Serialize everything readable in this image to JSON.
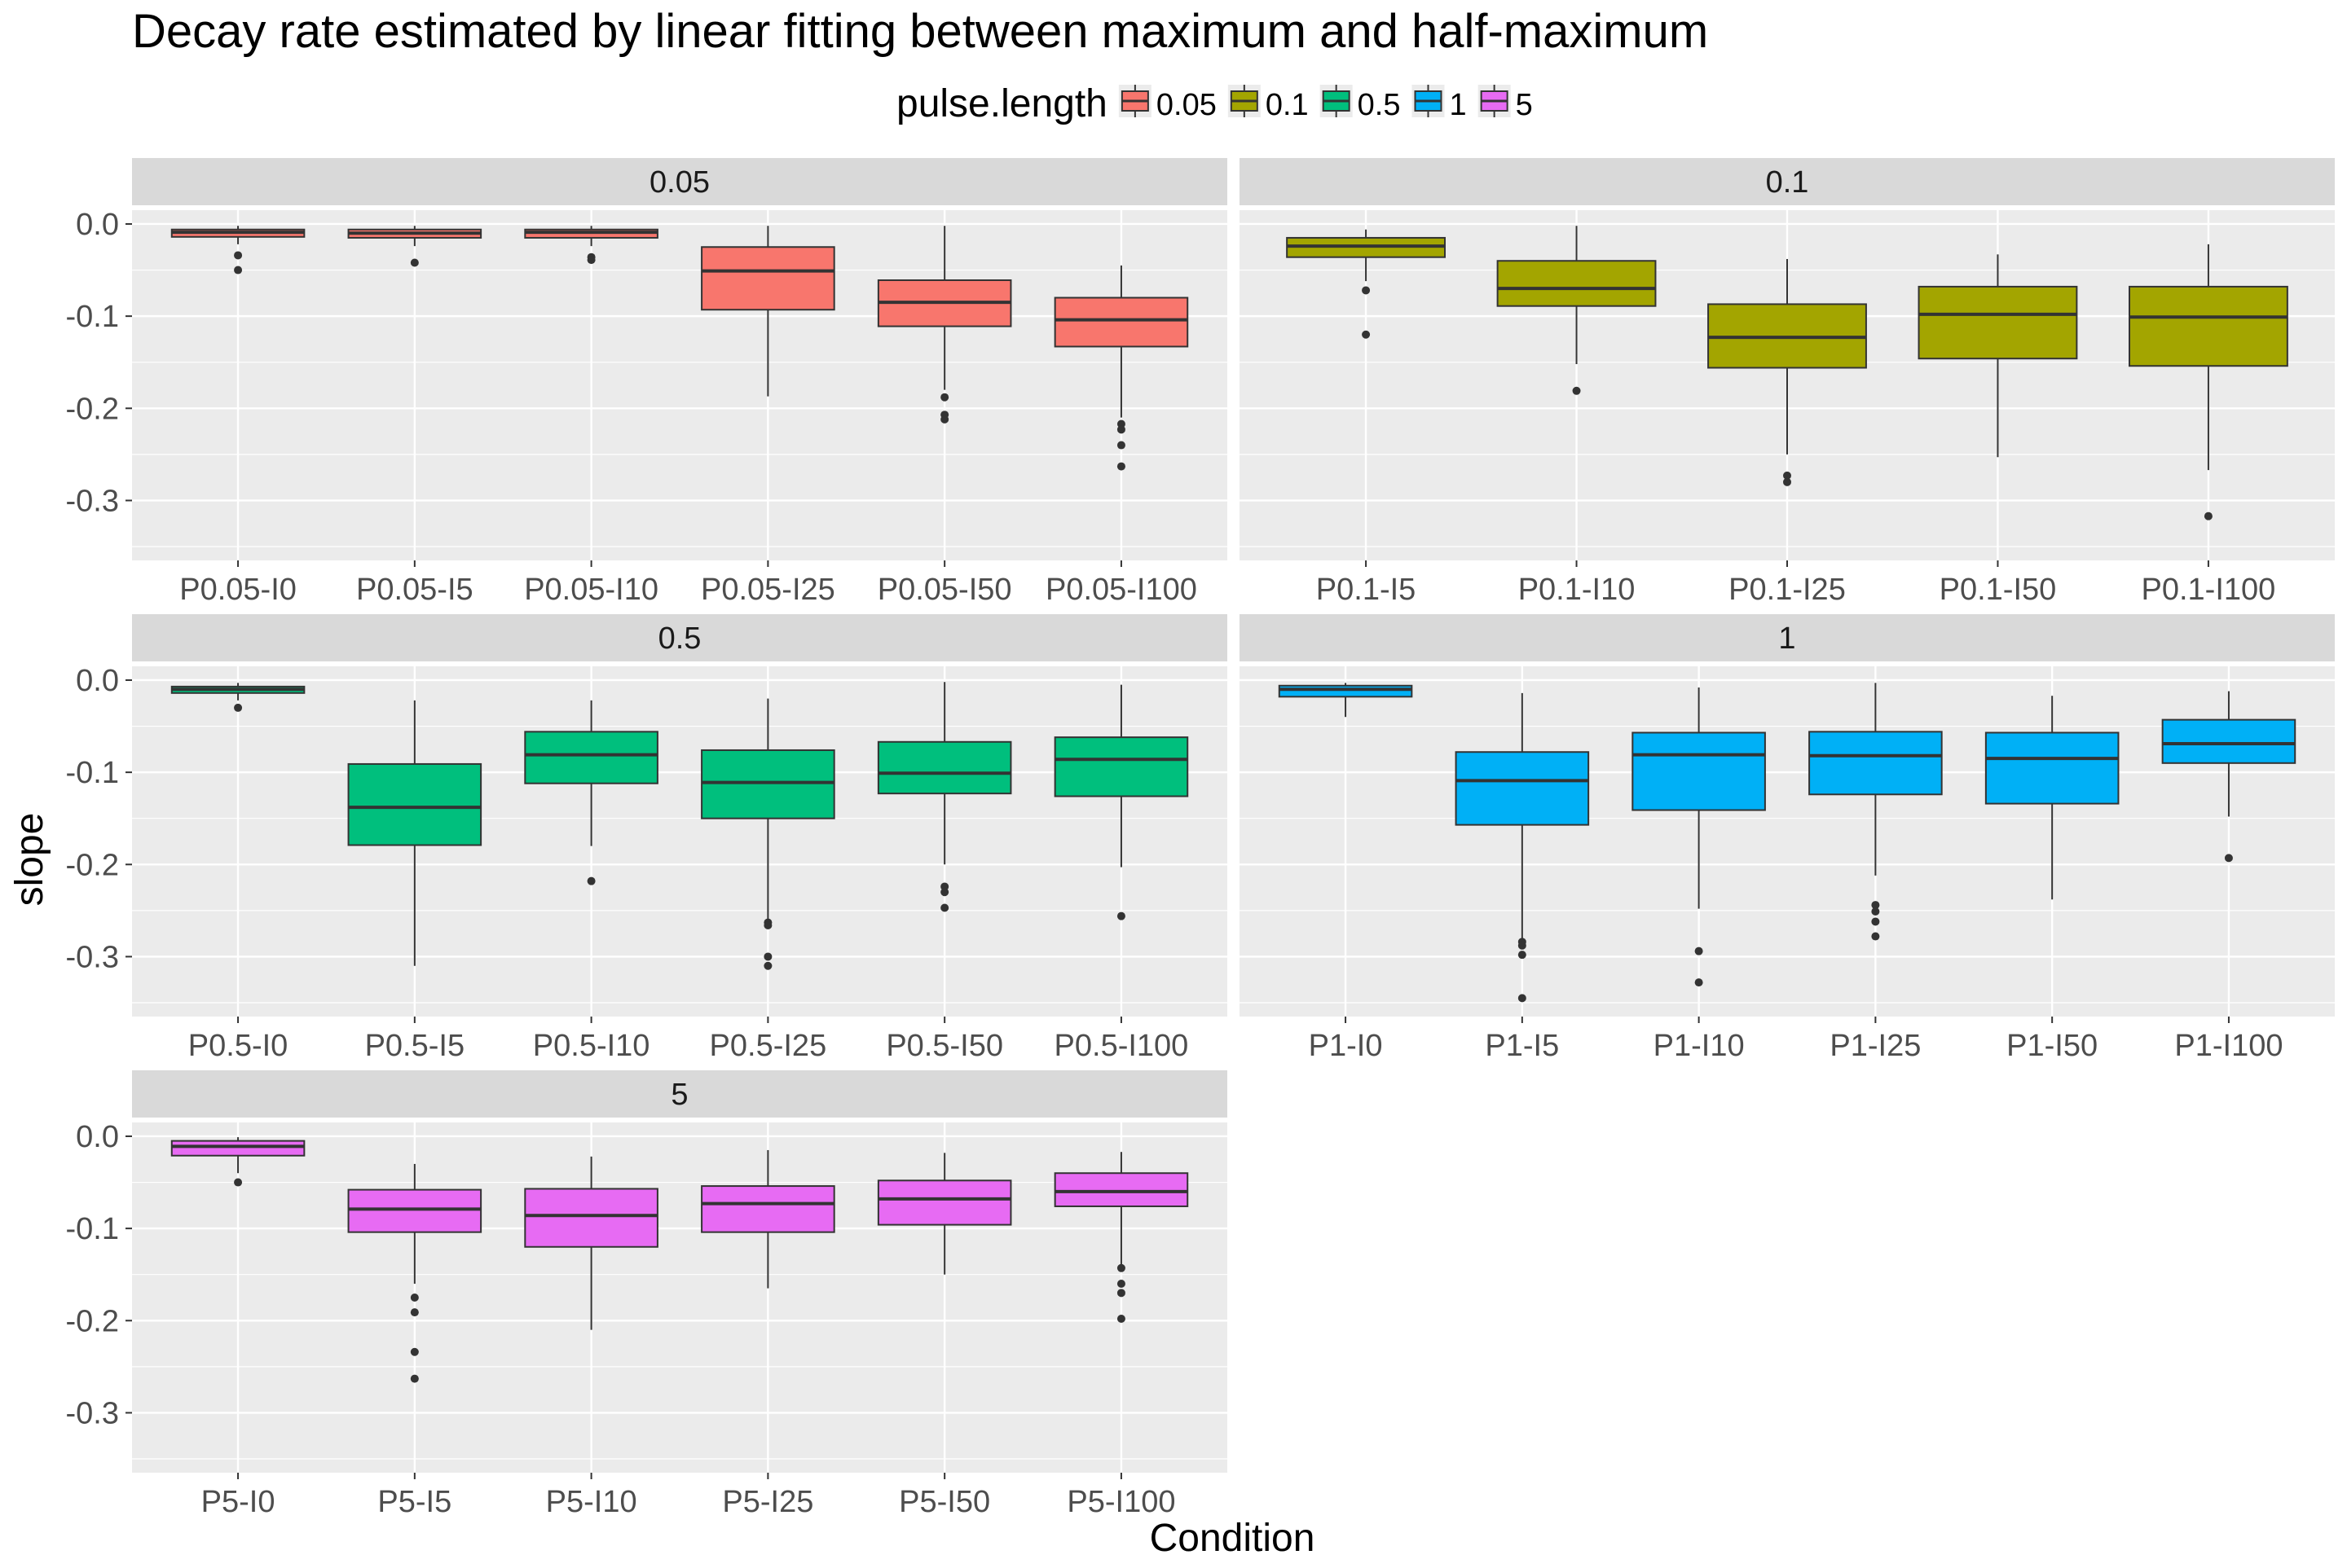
{
  "chart_data": {
    "type": "boxplot",
    "title": "Decay rate estimated by linear fitting between maximum and half-maximum",
    "xlabel": "Condition",
    "ylabel": "slope",
    "ylim": [
      -0.365,
      0.015
    ],
    "yticks": [
      0.0,
      -0.1,
      -0.2,
      -0.3
    ],
    "ytick_labels": [
      "0.0",
      "-0.1",
      "-0.2",
      "-0.3"
    ],
    "grid": true,
    "legend": {
      "title": "pulse.length",
      "position": "top",
      "entries": [
        {
          "label": "0.05",
          "color": "#F8766D"
        },
        {
          "label": "0.1",
          "color": "#A3A500"
        },
        {
          "label": "0.5",
          "color": "#00BF7D"
        },
        {
          "label": "1",
          "color": "#00B0F6"
        },
        {
          "label": "5",
          "color": "#E76BF3"
        }
      ]
    },
    "facets": [
      {
        "label": "0.05",
        "color": "#F8766D",
        "groups": [
          {
            "name": "P0.05-I0",
            "whisker_high": -0.002,
            "q3": -0.006,
            "median": -0.009,
            "q1": -0.014,
            "whisker_low": -0.022,
            "outliers": [
              -0.034,
              -0.05
            ]
          },
          {
            "name": "P0.05-I5",
            "whisker_high": -0.002,
            "q3": -0.006,
            "median": -0.01,
            "q1": -0.015,
            "whisker_low": -0.024,
            "outliers": [
              -0.042
            ]
          },
          {
            "name": "P0.05-I10",
            "whisker_high": -0.002,
            "q3": -0.006,
            "median": -0.009,
            "q1": -0.015,
            "whisker_low": -0.024,
            "outliers": [
              -0.036,
              -0.039
            ]
          },
          {
            "name": "P0.05-I25",
            "whisker_high": -0.002,
            "q3": -0.025,
            "median": -0.051,
            "q1": -0.093,
            "whisker_low": -0.187,
            "outliers": []
          },
          {
            "name": "P0.05-I50",
            "whisker_high": -0.002,
            "q3": -0.061,
            "median": -0.085,
            "q1": -0.111,
            "whisker_low": -0.18,
            "outliers": [
              -0.188,
              -0.207,
              -0.212
            ]
          },
          {
            "name": "P0.05-I100",
            "whisker_high": -0.045,
            "q3": -0.08,
            "median": -0.104,
            "q1": -0.133,
            "whisker_low": -0.21,
            "outliers": [
              -0.217,
              -0.223,
              -0.24,
              -0.263
            ]
          }
        ]
      },
      {
        "label": "0.1",
        "color": "#A3A500",
        "groups": [
          {
            "name": "P0.1-I5",
            "whisker_high": -0.006,
            "q3": -0.015,
            "median": -0.024,
            "q1": -0.036,
            "whisker_low": -0.062,
            "outliers": [
              -0.072,
              -0.12
            ]
          },
          {
            "name": "P0.1-I10",
            "whisker_high": -0.002,
            "q3": -0.04,
            "median": -0.07,
            "q1": -0.089,
            "whisker_low": -0.152,
            "outliers": [
              -0.181
            ]
          },
          {
            "name": "P0.1-I25",
            "whisker_high": -0.038,
            "q3": -0.087,
            "median": -0.123,
            "q1": -0.156,
            "whisker_low": -0.25,
            "outliers": [
              -0.273,
              -0.28
            ]
          },
          {
            "name": "P0.1-I50",
            "whisker_high": -0.033,
            "q3": -0.068,
            "median": -0.098,
            "q1": -0.146,
            "whisker_low": -0.253,
            "outliers": []
          },
          {
            "name": "P0.1-I100",
            "whisker_high": -0.022,
            "q3": -0.068,
            "median": -0.101,
            "q1": -0.154,
            "whisker_low": -0.267,
            "outliers": [
              -0.317
            ]
          }
        ]
      },
      {
        "label": "0.5",
        "color": "#00BF7D",
        "groups": [
          {
            "name": "P0.5-I0",
            "whisker_high": -0.003,
            "q3": -0.007,
            "median": -0.01,
            "q1": -0.014,
            "whisker_low": -0.022,
            "outliers": [
              -0.03
            ]
          },
          {
            "name": "P0.5-I5",
            "whisker_high": -0.022,
            "q3": -0.091,
            "median": -0.138,
            "q1": -0.179,
            "whisker_low": -0.31,
            "outliers": []
          },
          {
            "name": "P0.5-I10",
            "whisker_high": -0.022,
            "q3": -0.056,
            "median": -0.081,
            "q1": -0.112,
            "whisker_low": -0.18,
            "outliers": [
              -0.218
            ]
          },
          {
            "name": "P0.5-I25",
            "whisker_high": -0.02,
            "q3": -0.076,
            "median": -0.111,
            "q1": -0.15,
            "whisker_low": -0.26,
            "outliers": [
              -0.263,
              -0.266,
              -0.3,
              -0.31
            ]
          },
          {
            "name": "P0.5-I50",
            "whisker_high": -0.002,
            "q3": -0.067,
            "median": -0.101,
            "q1": -0.123,
            "whisker_low": -0.2,
            "outliers": [
              -0.224,
              -0.23,
              -0.247
            ]
          },
          {
            "name": "P0.5-I100",
            "whisker_high": -0.005,
            "q3": -0.062,
            "median": -0.086,
            "q1": -0.126,
            "whisker_low": -0.203,
            "outliers": [
              -0.256
            ]
          }
        ]
      },
      {
        "label": "1",
        "color": "#00B0F6",
        "groups": [
          {
            "name": "P1-I0",
            "whisker_high": -0.003,
            "q3": -0.006,
            "median": -0.01,
            "q1": -0.018,
            "whisker_low": -0.04,
            "outliers": []
          },
          {
            "name": "P1-I5",
            "whisker_high": -0.014,
            "q3": -0.078,
            "median": -0.109,
            "q1": -0.157,
            "whisker_low": -0.28,
            "outliers": [
              -0.284,
              -0.288,
              -0.298,
              -0.345
            ]
          },
          {
            "name": "P1-I10",
            "whisker_high": -0.008,
            "q3": -0.057,
            "median": -0.081,
            "q1": -0.141,
            "whisker_low": -0.248,
            "outliers": [
              -0.294,
              -0.328
            ]
          },
          {
            "name": "P1-I25",
            "whisker_high": -0.003,
            "q3": -0.056,
            "median": -0.082,
            "q1": -0.124,
            "whisker_low": -0.212,
            "outliers": [
              -0.244,
              -0.251,
              -0.262,
              -0.278
            ]
          },
          {
            "name": "P1-I50",
            "whisker_high": -0.017,
            "q3": -0.057,
            "median": -0.085,
            "q1": -0.134,
            "whisker_low": -0.238,
            "outliers": []
          },
          {
            "name": "P1-I100",
            "whisker_high": -0.012,
            "q3": -0.043,
            "median": -0.069,
            "q1": -0.09,
            "whisker_low": -0.148,
            "outliers": [
              -0.193
            ]
          }
        ]
      },
      {
        "label": "5",
        "color": "#E76BF3",
        "groups": [
          {
            "name": "P5-I0",
            "whisker_high": -0.001,
            "q3": -0.005,
            "median": -0.011,
            "q1": -0.021,
            "whisker_low": -0.04,
            "outliers": [
              -0.05
            ]
          },
          {
            "name": "P5-I5",
            "whisker_high": -0.03,
            "q3": -0.058,
            "median": -0.079,
            "q1": -0.104,
            "whisker_low": -0.16,
            "outliers": [
              -0.175,
              -0.191,
              -0.234,
              -0.263
            ]
          },
          {
            "name": "P5-I10",
            "whisker_high": -0.022,
            "q3": -0.057,
            "median": -0.086,
            "q1": -0.12,
            "whisker_low": -0.21,
            "outliers": []
          },
          {
            "name": "P5-I25",
            "whisker_high": -0.015,
            "q3": -0.054,
            "median": -0.073,
            "q1": -0.104,
            "whisker_low": -0.165,
            "outliers": []
          },
          {
            "name": "P5-I50",
            "whisker_high": -0.018,
            "q3": -0.048,
            "median": -0.068,
            "q1": -0.096,
            "whisker_low": -0.15,
            "outliers": []
          },
          {
            "name": "P5-I100",
            "whisker_high": -0.017,
            "q3": -0.04,
            "median": -0.06,
            "q1": -0.076,
            "whisker_low": -0.14,
            "outliers": [
              -0.143,
              -0.16,
              -0.17,
              -0.198
            ]
          }
        ]
      }
    ]
  }
}
